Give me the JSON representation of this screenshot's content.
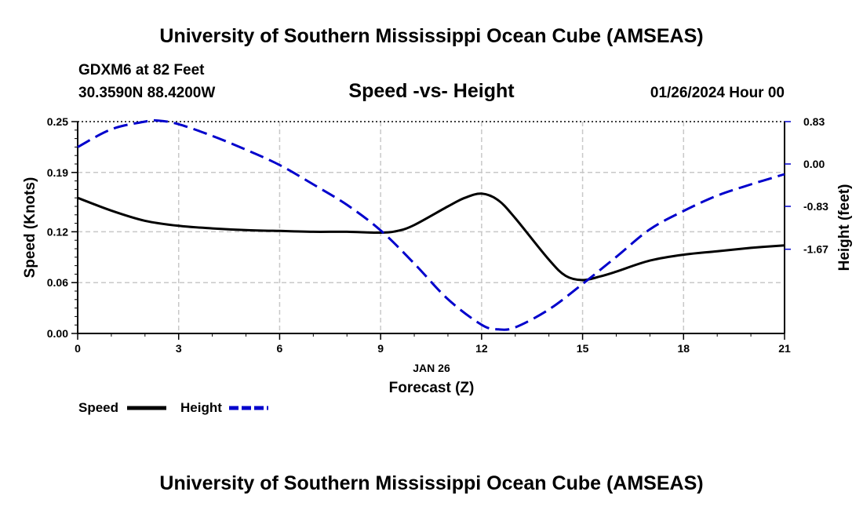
{
  "header": {
    "title": "University of Southern Mississippi Ocean Cube (AMSEAS)",
    "station": "GDXM6 at 82 Feet",
    "coords": "30.3590N  88.4200W",
    "datetime": "01/26/2024 Hour 00",
    "footer_title": "University of Southern Mississippi Ocean Cube (AMSEAS)"
  },
  "chart_data": {
    "type": "line",
    "title": "Speed -vs- Height",
    "xlabel_date": "JAN 26",
    "xlabel": "Forecast (Z)",
    "ylabel": "Speed (Knots)",
    "y2label": "Height (feet)",
    "xlim": [
      0,
      21
    ],
    "ylim": [
      0,
      0.25
    ],
    "y2lim": [
      -3.32,
      0.83
    ],
    "grid": true,
    "x_ticks": [
      "0",
      "3",
      "6",
      "9",
      "12",
      "15",
      "18",
      "21"
    ],
    "y_ticks": [
      "0.00",
      "0.06",
      "0.12",
      "0.19",
      "0.25"
    ],
    "y2_ticks": [
      "0.83",
      "0.00",
      "-0.83",
      "-1.67"
    ],
    "y2_tick_values": [
      0.83,
      0.0,
      -0.83,
      -1.67
    ],
    "series": [
      {
        "name": "Speed",
        "axis": "left",
        "color": "#000000",
        "style": "solid",
        "x": [
          0,
          1,
          2,
          3,
          4,
          5,
          6,
          7,
          8,
          9,
          9.5,
          10,
          11,
          11.5,
          12,
          12.5,
          13,
          14,
          14.5,
          15,
          15.5,
          16,
          17,
          18,
          19,
          20,
          21
        ],
        "values": [
          0.16,
          0.145,
          0.133,
          0.127,
          0.124,
          0.122,
          0.121,
          0.12,
          0.12,
          0.119,
          0.121,
          0.128,
          0.15,
          0.16,
          0.165,
          0.157,
          0.136,
          0.087,
          0.068,
          0.063,
          0.067,
          0.073,
          0.086,
          0.093,
          0.097,
          0.101,
          0.104
        ]
      },
      {
        "name": "Height",
        "axis": "right",
        "color": "#0000cc",
        "style": "dashed",
        "x": [
          0,
          1,
          2,
          2.4,
          3,
          4,
          5,
          6,
          7,
          8,
          9,
          10,
          11,
          12,
          12.5,
          13,
          14,
          15,
          16,
          17,
          18,
          19,
          20,
          21
        ],
        "values": [
          0.33,
          0.68,
          0.83,
          0.85,
          0.78,
          0.55,
          0.28,
          -0.02,
          -0.4,
          -0.8,
          -1.3,
          -1.95,
          -2.65,
          -3.15,
          -3.24,
          -3.2,
          -2.85,
          -2.35,
          -1.82,
          -1.28,
          -0.92,
          -0.62,
          -0.4,
          -0.2
        ]
      }
    ]
  }
}
